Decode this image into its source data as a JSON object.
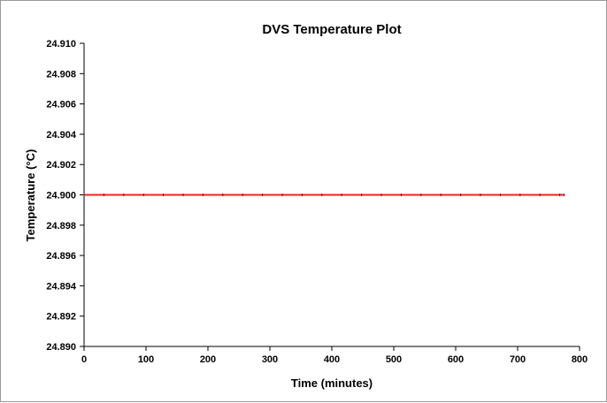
{
  "chart_data": {
    "type": "line",
    "title": "DVS Temperature Plot",
    "xlabel": "Time (minutes)",
    "ylabel": "Temperature (°C)",
    "xlim": [
      0,
      800
    ],
    "ylim": [
      24.89,
      24.91
    ],
    "x_ticks": [
      "0",
      "100",
      "200",
      "300",
      "400",
      "500",
      "600",
      "700",
      "800"
    ],
    "y_ticks": [
      "24.890",
      "24.892",
      "24.894",
      "24.896",
      "24.898",
      "24.900",
      "24.902",
      "24.904",
      "24.906",
      "24.908",
      "24.910"
    ],
    "grid": false,
    "legend": "none",
    "series": [
      {
        "color": "#e8281e",
        "marker_color": "#7a1010",
        "x": [
          0,
          32,
          64,
          96,
          128,
          160,
          192,
          224,
          256,
          288,
          320,
          352,
          384,
          416,
          448,
          480,
          512,
          544,
          576,
          608,
          640,
          672,
          704,
          736,
          768,
          775
        ],
        "y": [
          24.9,
          24.9,
          24.9,
          24.9,
          24.9,
          24.9,
          24.9,
          24.9,
          24.9,
          24.9,
          24.9,
          24.9,
          24.9,
          24.9,
          24.9,
          24.9,
          24.9,
          24.9,
          24.9,
          24.9,
          24.9,
          24.9,
          24.9,
          24.9,
          24.9,
          24.9
        ]
      }
    ]
  }
}
